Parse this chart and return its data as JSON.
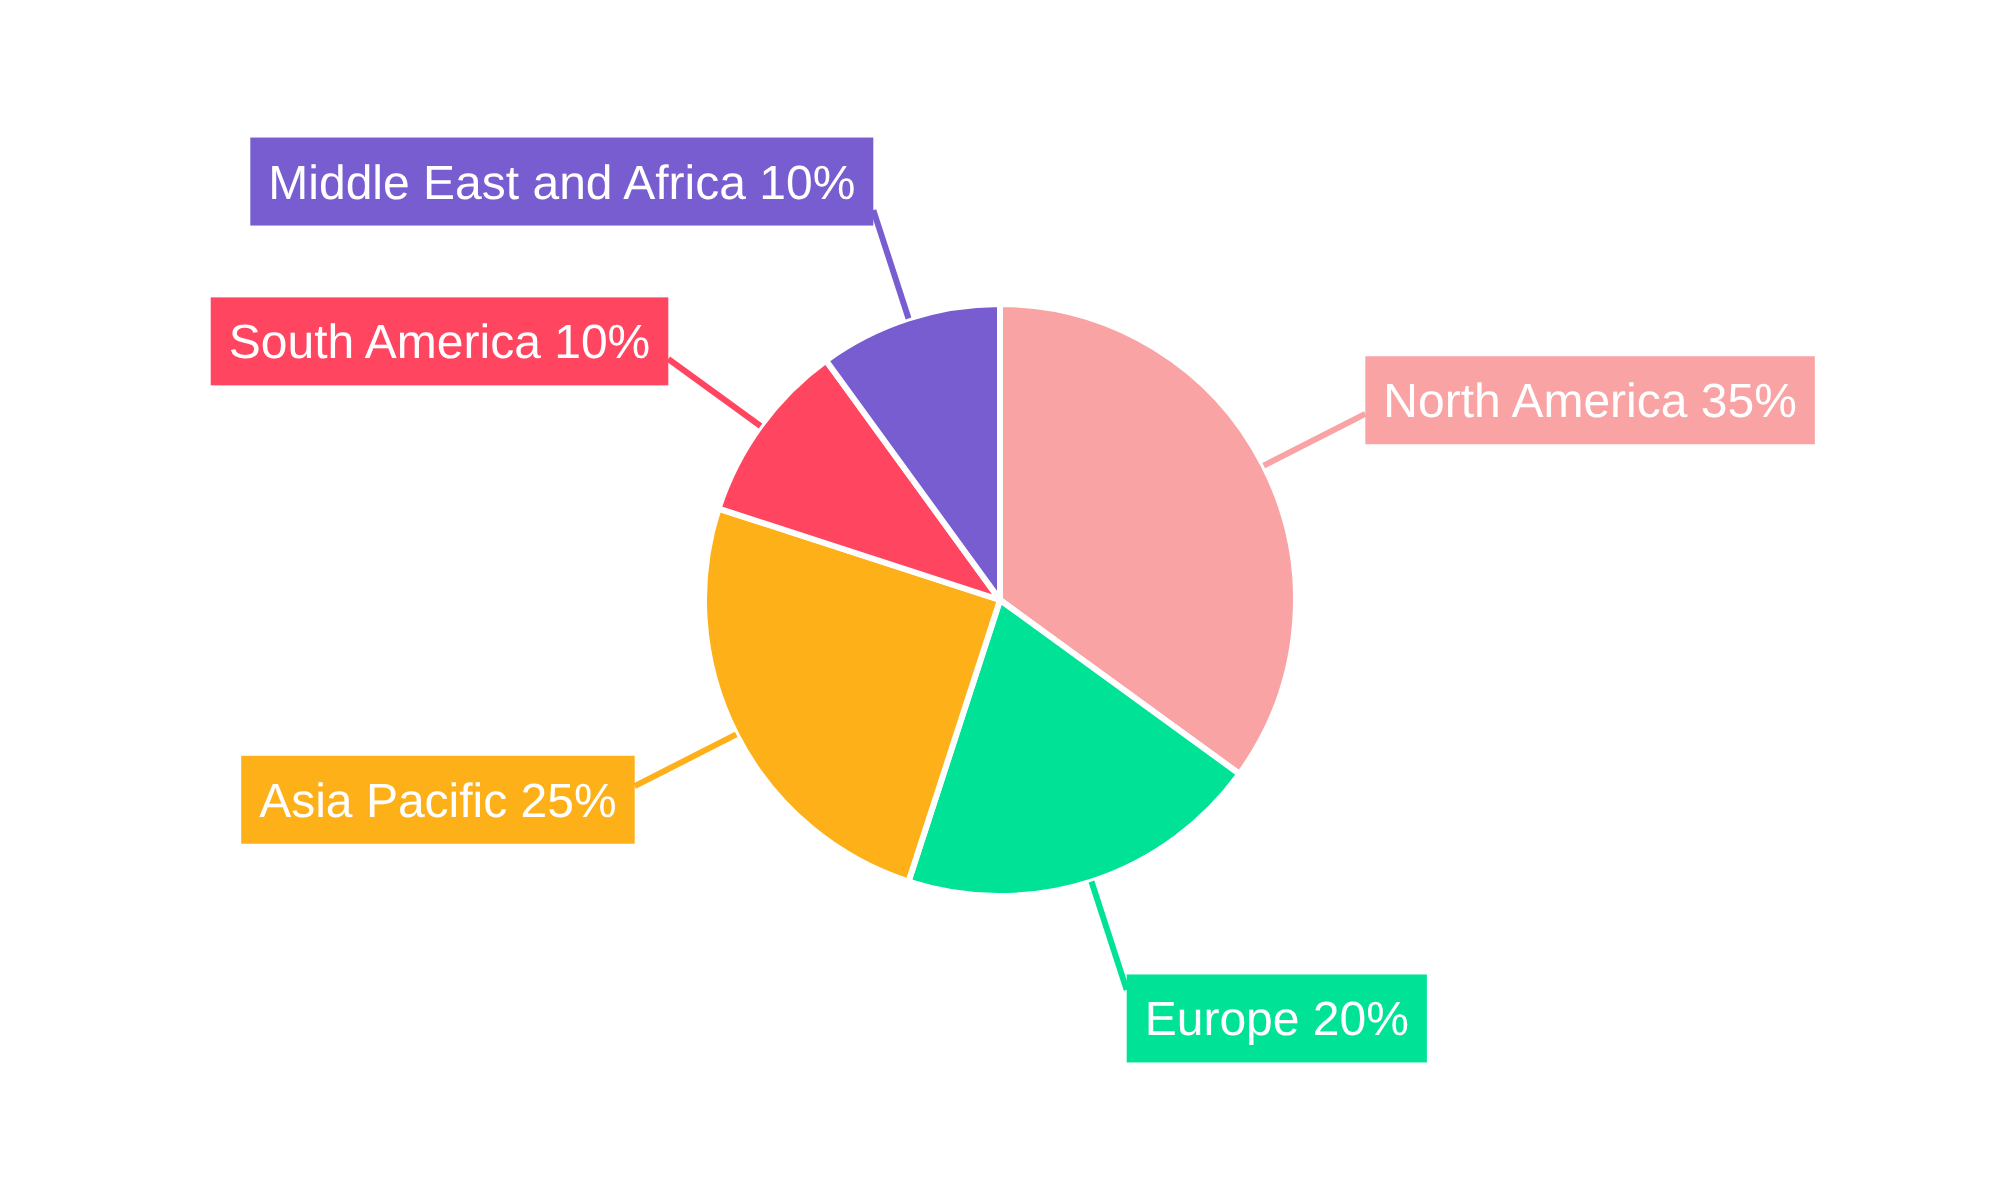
{
  "chart_data": {
    "type": "pie",
    "categories": [
      "North America",
      "Europe",
      "Asia Pacific",
      "South America",
      "Middle East and Africa"
    ],
    "values": [
      35,
      20,
      25,
      10,
      10
    ],
    "value_labels": [
      "35%",
      "20%",
      "25%",
      "10%",
      "10%"
    ],
    "colors": [
      "#f9a3a4",
      "#00e396",
      "#feb019",
      "#ff4560",
      "#775dd0"
    ],
    "legend": false
  }
}
